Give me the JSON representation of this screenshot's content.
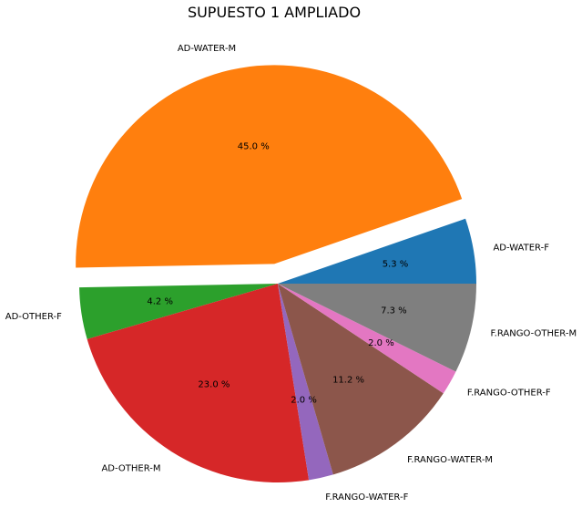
{
  "chart_data": {
    "type": "pie",
    "title": "SUPUESTO 1 AMPLIADO",
    "slices": [
      {
        "label": "AD-WATER-F",
        "value": 5.3,
        "pct_label": "5.3 %",
        "color": "#1f77b4",
        "exploded": false
      },
      {
        "label": "AD-WATER-M",
        "value": 45.0,
        "pct_label": "45.0 %",
        "color": "#ff7f0e",
        "exploded": true
      },
      {
        "label": "AD-OTHER-F",
        "value": 4.2,
        "pct_label": "4.2 %",
        "color": "#2ca02c",
        "exploded": false
      },
      {
        "label": "AD-OTHER-M",
        "value": 23.0,
        "pct_label": "23.0 %",
        "color": "#d62728",
        "exploded": false
      },
      {
        "label": "F.RANGO-WATER-F",
        "value": 2.0,
        "pct_label": "2.0 %",
        "color": "#9467bd",
        "exploded": false
      },
      {
        "label": "F.RANGO-WATER-M",
        "value": 11.2,
        "pct_label": "11.2 %",
        "color": "#8c564b",
        "exploded": false
      },
      {
        "label": "F.RANGO-OTHER-F",
        "value": 2.0,
        "pct_label": "2.0 %",
        "color": "#e377c2",
        "exploded": false
      },
      {
        "label": "F.RANGO-OTHER-M",
        "value": 7.3,
        "pct_label": "7.3 %",
        "color": "#7f7f7f",
        "exploded": false
      }
    ],
    "start_angle_deg": 0,
    "direction": "counterclockwise",
    "legend": "none"
  }
}
